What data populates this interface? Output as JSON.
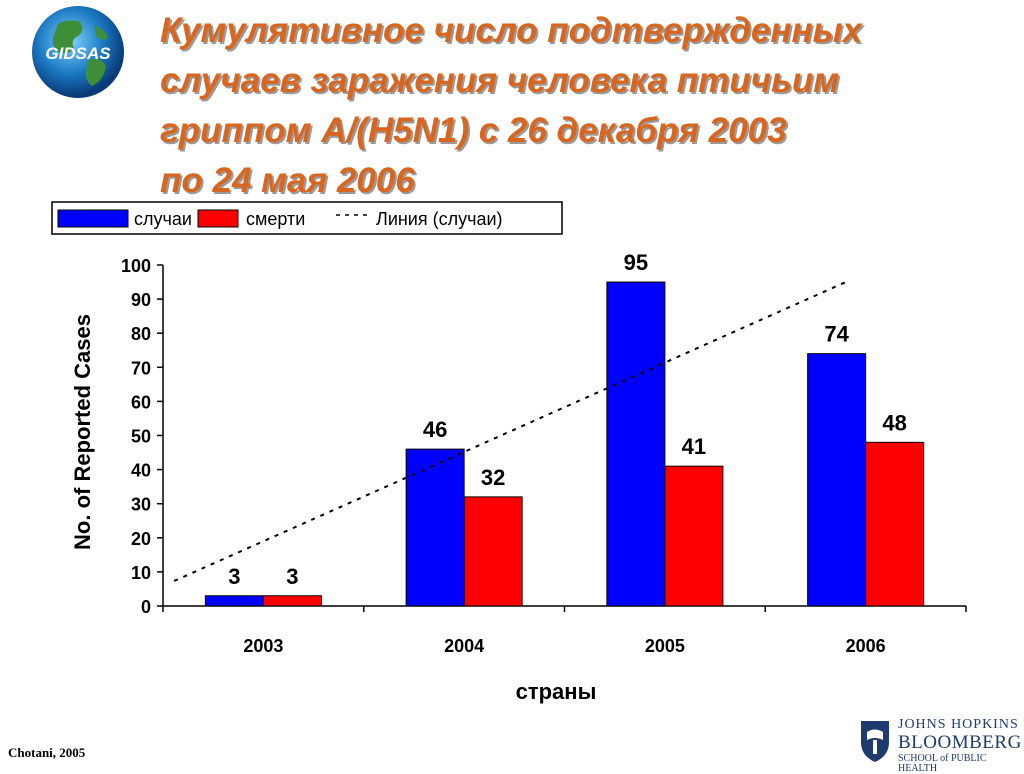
{
  "logo": {
    "text": "GIDSAS"
  },
  "title_lines": [
    "Кумулятивное число подтвержденных",
    "случаев заражения человека птичьим",
    "гриппом А/(H5N1) с 26 декабря 2003",
    "по  24 мая 2006"
  ],
  "colors": {
    "cases": "#0000ff",
    "deaths": "#ff0000",
    "title": "#d9661f",
    "trend": "#000000"
  },
  "chart_data": {
    "type": "bar",
    "categories": [
      "2003",
      "2004",
      "2005",
      "2006"
    ],
    "series": [
      {
        "name": "случаи",
        "values": [
          3,
          46,
          95,
          74
        ]
      },
      {
        "name": "смерти",
        "values": [
          3,
          32,
          41,
          48
        ]
      }
    ],
    "trend": {
      "name": "Линия (случаи)",
      "of_series": "случаи",
      "style": "dashed"
    },
    "ylabel": "No. of Reported Cases",
    "xlabel": "страны",
    "ylim": [
      0,
      100
    ],
    "yticks": [
      0,
      10,
      20,
      30,
      40,
      50,
      60,
      70,
      80,
      90,
      100
    ],
    "grid": false,
    "legend_position": "top-left"
  },
  "footer": {
    "credit": "Chotani, 2005",
    "institution": {
      "line1": "JOHNS HOPKINS",
      "line2": "BLOOMBERG",
      "line3": "SCHOOL of PUBLIC HEALTH"
    }
  }
}
